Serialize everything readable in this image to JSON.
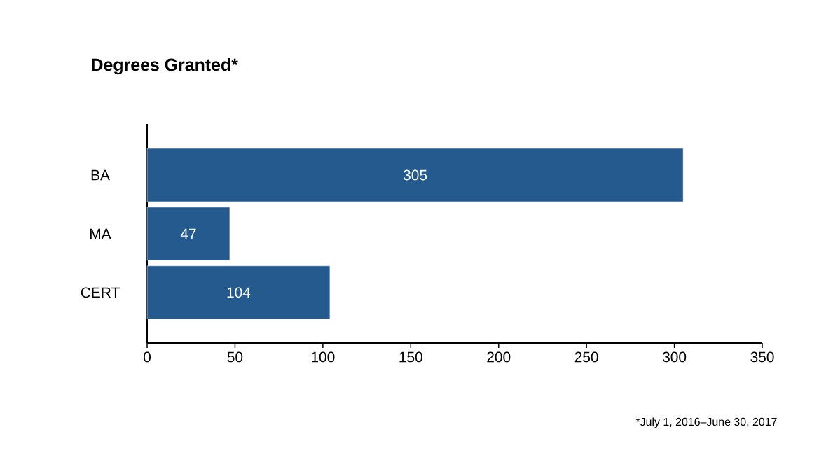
{
  "chart_data": {
    "type": "bar",
    "orientation": "horizontal",
    "title": "Degrees Granted*",
    "categories": [
      "BA",
      "MA",
      "CERT"
    ],
    "values": [
      305,
      47,
      104
    ],
    "color": "#245a8e",
    "xlim": [
      0,
      350
    ],
    "xticks": [
      0,
      50,
      100,
      150,
      200,
      250,
      300,
      350
    ],
    "data_labels": true,
    "grid": false,
    "annotations": [
      "*July 1, 2016–June 30, 2017"
    ]
  }
}
